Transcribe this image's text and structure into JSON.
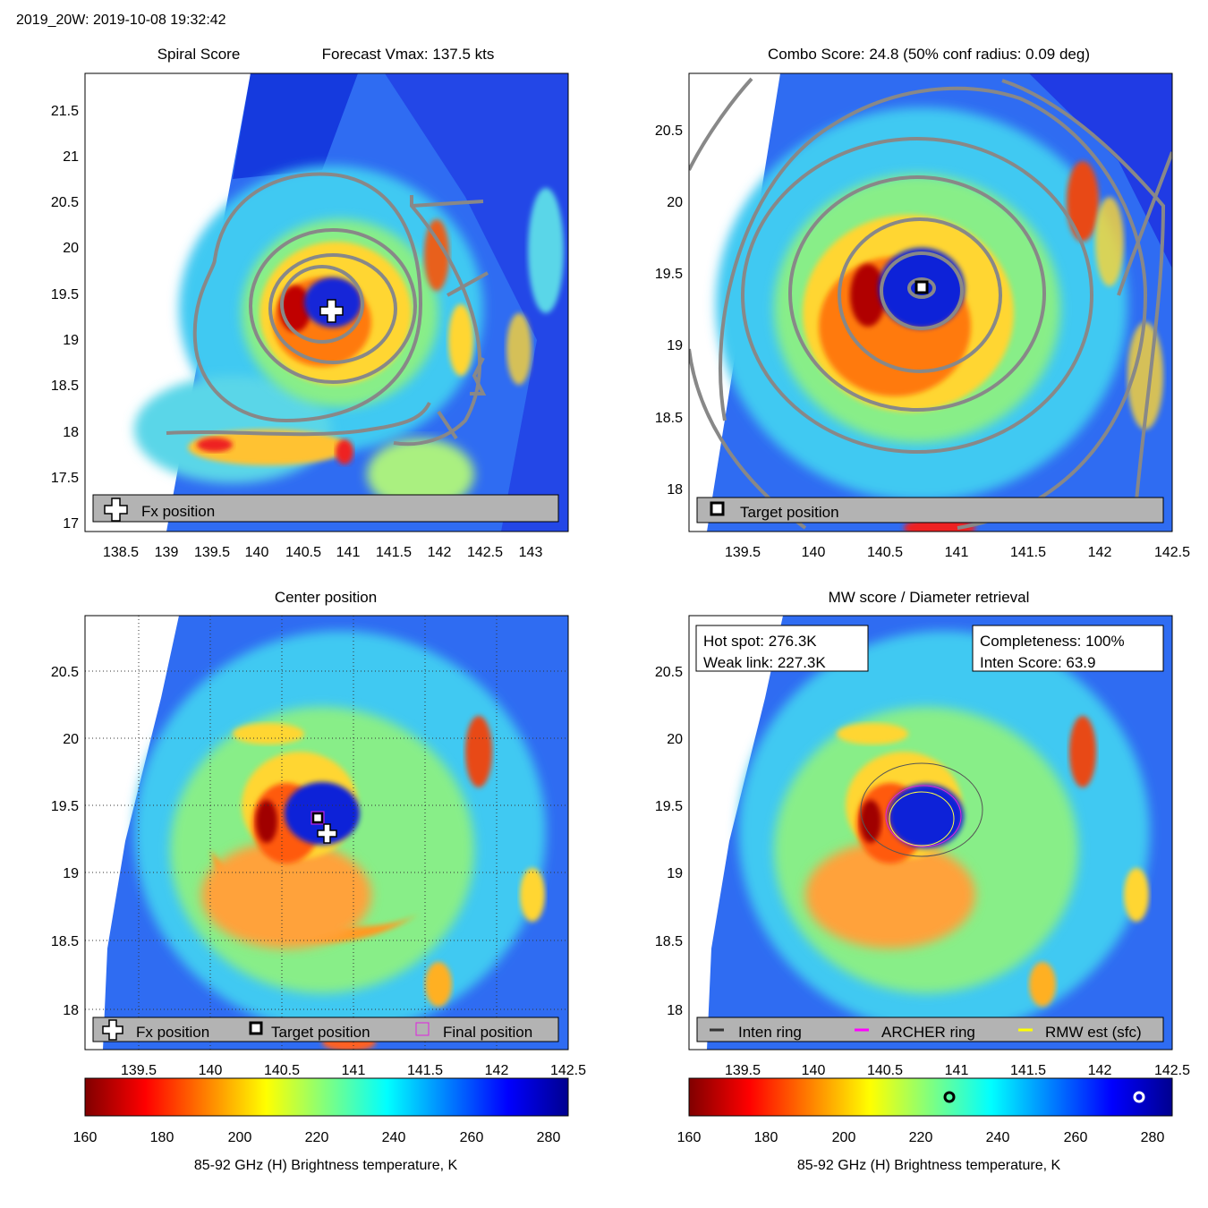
{
  "header": {
    "title": "2019_20W: 2019-10-08 19:32:42"
  },
  "colorbar": {
    "ticks": [
      "160",
      "180",
      "200",
      "220",
      "240",
      "260",
      "280"
    ],
    "label": "85-92 GHz (H) Brightness temperature, K",
    "range": [
      160,
      285
    ],
    "hot_spot_marker_K": 276.3,
    "weak_link_marker_K": 227.3
  },
  "panels": {
    "spiral": {
      "title": "Spiral Score",
      "subtitle": "Forecast Vmax: 137.5 kts",
      "xticks": [
        "138.5",
        "139",
        "139.5",
        "140",
        "140.5",
        "141",
        "141.5",
        "142",
        "142.5",
        "143"
      ],
      "yticks": [
        "17",
        "17.5",
        "18",
        "18.5",
        "19",
        "19.5",
        "20",
        "20.5",
        "21",
        "21.5"
      ],
      "legend": {
        "fx": "Fx position"
      },
      "fx_position": [
        140.82,
        19.29
      ]
    },
    "combo": {
      "title": "Combo Score: 24.8  (50% conf radius: 0.09 deg)",
      "xticks": [
        "139.5",
        "140",
        "140.5",
        "141",
        "141.5",
        "142",
        "142.5"
      ],
      "yticks": [
        "18",
        "18.5",
        "19",
        "19.5",
        "20",
        "20.5"
      ],
      "legend": {
        "target": "Target position"
      },
      "target_position": [
        140.75,
        19.39
      ]
    },
    "center": {
      "title": "Center position",
      "xticks": [
        "139.5",
        "140",
        "140.5",
        "141",
        "141.5",
        "142",
        "142.5"
      ],
      "yticks": [
        "18",
        "18.5",
        "19",
        "19.5",
        "20",
        "20.5"
      ],
      "legend": {
        "fx": "Fx position",
        "target": "Target position",
        "final": "Final position"
      },
      "fx_position": [
        140.82,
        19.29
      ],
      "target_position": [
        140.75,
        19.39
      ]
    },
    "mw": {
      "title": "MW score / Diameter retrieval",
      "xticks": [
        "139.5",
        "140",
        "140.5",
        "141",
        "141.5",
        "142",
        "142.5"
      ],
      "yticks": [
        "18",
        "18.5",
        "19",
        "19.5",
        "20",
        "20.5"
      ],
      "hot_spot": "Hot spot: 276.3K",
      "weak_link": "Weak link: 227.3K",
      "completeness": "Completeness: 100%",
      "inten_score": "Inten Score: 63.9",
      "legend": {
        "inten": "Inten ring",
        "archer": "ARCHER ring",
        "rmw": "RMW est (sfc)"
      }
    }
  },
  "chart_data": [
    {
      "type": "heatmap",
      "title": "Spiral Score",
      "subtitle": "Forecast Vmax: 137.5 kts",
      "xlim": [
        138.1,
        143.4
      ],
      "ylim": [
        16.9,
        21.9
      ],
      "center": [
        140.78,
        19.36
      ],
      "fx_position": [
        140.82,
        19.29
      ]
    },
    {
      "type": "heatmap",
      "title": "Combo Score: 24.8  (50% conf radius: 0.09 deg)",
      "xlim": [
        139.1,
        142.5
      ],
      "ylim": [
        17.7,
        20.9
      ],
      "center": [
        140.75,
        19.39
      ],
      "target_position": [
        140.75,
        19.39
      ]
    },
    {
      "type": "heatmap",
      "title": "Center position",
      "xlim": [
        139.1,
        142.5
      ],
      "ylim": [
        17.7,
        20.9
      ],
      "center": [
        140.75,
        19.39
      ],
      "grid": true
    },
    {
      "type": "heatmap",
      "title": "MW score / Diameter retrieval",
      "xlim": [
        139.1,
        142.5
      ],
      "ylim": [
        17.7,
        20.9
      ],
      "center": [
        140.75,
        19.39
      ]
    }
  ]
}
